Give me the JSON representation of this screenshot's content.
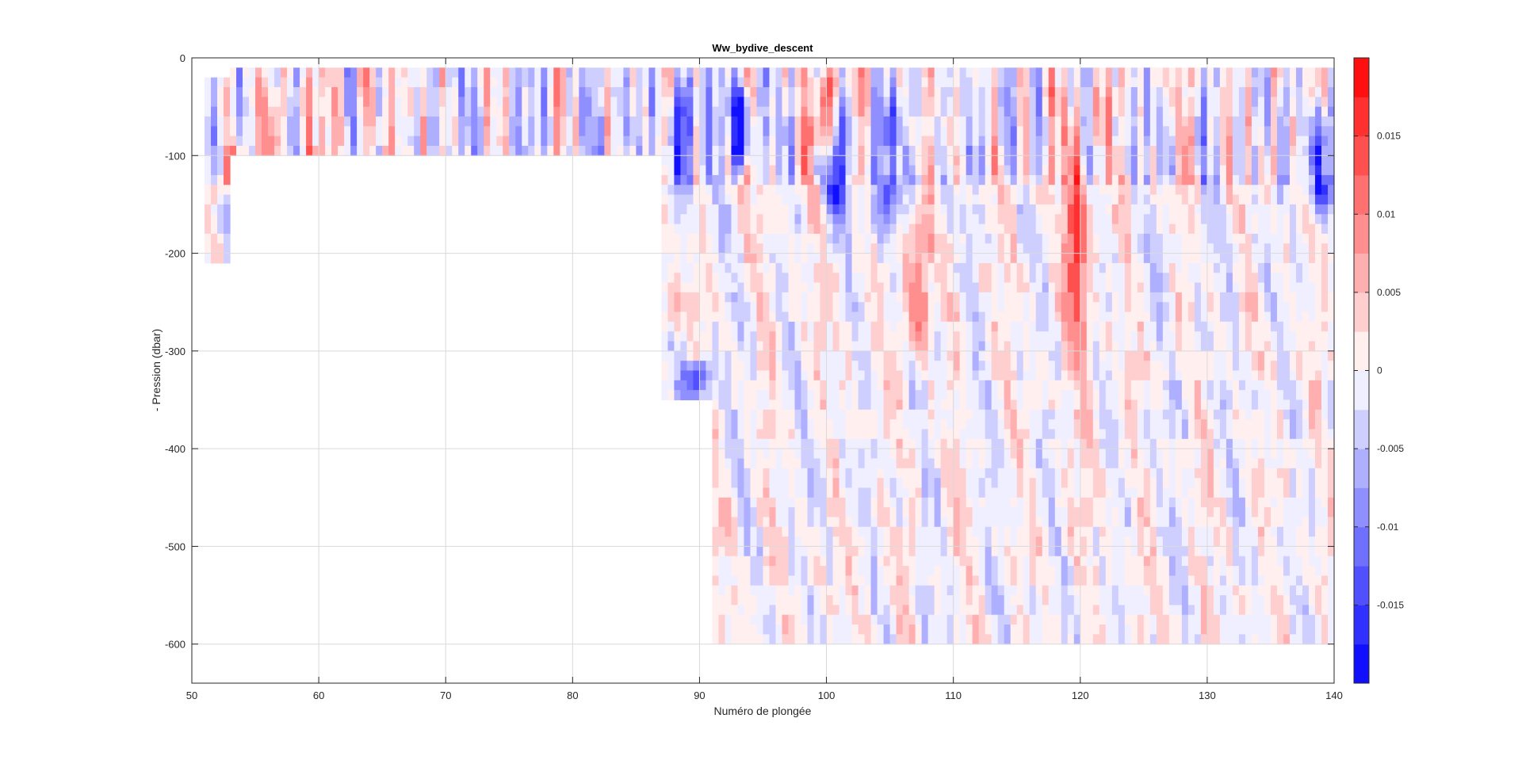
{
  "chart_data": {
    "type": "heatmap",
    "title": "Ww_bydive_descent",
    "xlabel": "Numéro de plongée",
    "ylabel": "- Pression (dbar)",
    "xlim": [
      50,
      140
    ],
    "ylim": [
      -640,
      0
    ],
    "xticks": [
      50,
      60,
      70,
      80,
      90,
      100,
      110,
      120,
      130,
      140
    ],
    "yticks": [
      0,
      -100,
      -200,
      -300,
      -400,
      -500,
      -600
    ],
    "grid": true,
    "colorbar": {
      "clim": [
        -0.02,
        0.02
      ],
      "ticks": [
        0.015,
        0.01,
        0.005,
        0,
        -0.005,
        -0.01,
        -0.015
      ],
      "tick_labels": [
        "0.015",
        "0.01",
        "0.005",
        "0",
        "-0.005",
        "-0.01",
        "-0.015"
      ],
      "levels": 16,
      "colormap": "blue-white-red",
      "color_min": "#0000ff",
      "color_max": "#ff0000",
      "color_mid": "#ffffff"
    },
    "coverage": [
      {
        "dives": [
          51,
          53
        ],
        "depth_min": -20,
        "depth_max": -200
      },
      {
        "dives": [
          53,
          87
        ],
        "depth_min": -10,
        "depth_max": -90
      },
      {
        "dives": [
          87,
          91
        ],
        "depth_min": -10,
        "depth_max": -340
      },
      {
        "dives": [
          91,
          140
        ],
        "depth_min": -10,
        "depth_max": -590
      }
    ],
    "features": [
      {
        "dive": 88.5,
        "depth_top": -20,
        "depth_bottom": -130,
        "value": -0.019
      },
      {
        "dive": 89.5,
        "depth_top": -310,
        "depth_bottom": -340,
        "value": -0.018
      },
      {
        "dive": 93,
        "depth_top": -30,
        "depth_bottom": -100,
        "value": -0.017
      },
      {
        "dive": 100.5,
        "depth_top": -50,
        "depth_bottom": -160,
        "value": -0.017
      },
      {
        "dive": 104.5,
        "depth_top": -30,
        "depth_bottom": -170,
        "value": -0.015
      },
      {
        "dive": 107,
        "depth_top": -150,
        "depth_bottom": -290,
        "value": 0.012
      },
      {
        "dive": 119.5,
        "depth_top": -80,
        "depth_bottom": -300,
        "value": 0.014
      },
      {
        "dive": 99.5,
        "depth_top": -20,
        "depth_bottom": -90,
        "value": 0.016
      },
      {
        "dive": 53,
        "depth_top": -90,
        "depth_bottom": -130,
        "value": 0.012
      },
      {
        "dive": 87.5,
        "depth_top": -230,
        "depth_bottom": -280,
        "value": 0.007
      },
      {
        "dive": 138.5,
        "depth_top": -50,
        "depth_bottom": -150,
        "value": -0.016
      }
    ]
  }
}
